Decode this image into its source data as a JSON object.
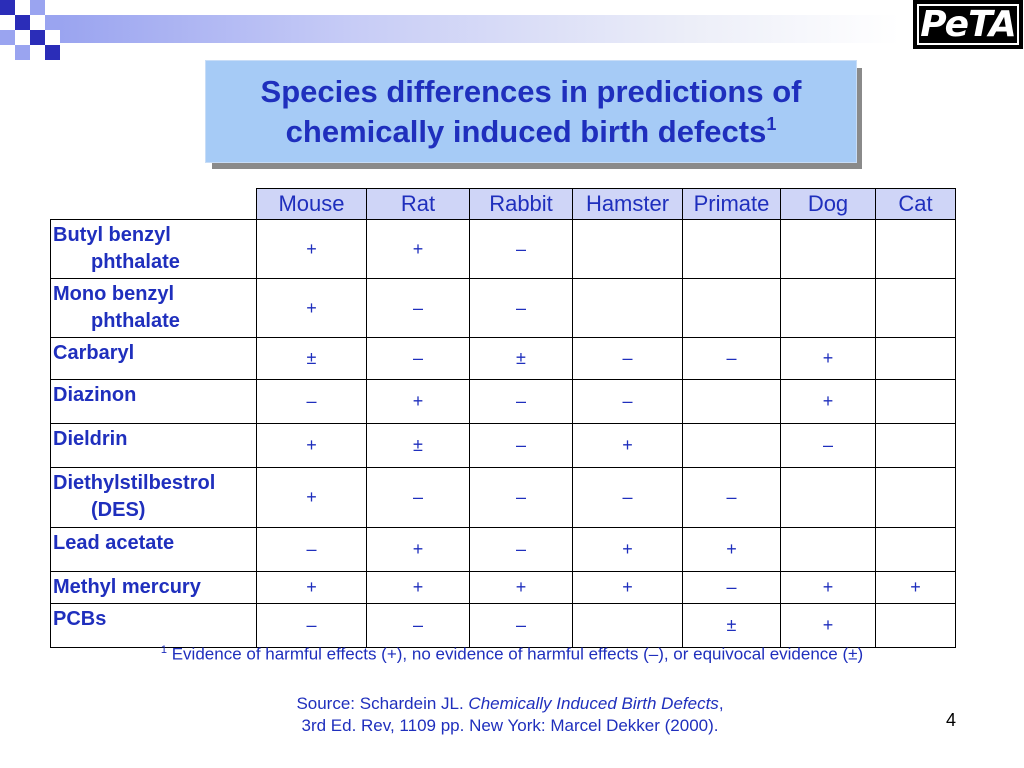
{
  "slide": {
    "title_line1": "Species differences in predictions of",
    "title_line2": "chemically induced birth defects",
    "title_sup": "1",
    "page_number": "4"
  },
  "logo": {
    "text": "PeTA"
  },
  "table": {
    "columns": [
      "Mouse",
      "Rat",
      "Rabbit",
      "Hamster",
      "Primate",
      "Dog",
      "Cat"
    ],
    "rows": [
      {
        "name_line1": "Butyl benzyl",
        "name_line2": "phthalate",
        "cells": [
          "+",
          "+",
          "–",
          "",
          "",
          "",
          ""
        ]
      },
      {
        "name_line1": "Mono benzyl",
        "name_line2": "phthalate",
        "cells": [
          "+",
          "–",
          "–",
          "",
          "",
          "",
          ""
        ]
      },
      {
        "name_line1": "Carbaryl",
        "name_line2": "",
        "cells": [
          "±",
          "–",
          "±",
          "–",
          "–",
          "+",
          ""
        ]
      },
      {
        "name_line1": "Diazinon",
        "name_line2": "",
        "cells": [
          "–",
          "+",
          "–",
          "–",
          "",
          "+",
          ""
        ]
      },
      {
        "name_line1": "Dieldrin",
        "name_line2": "",
        "cells": [
          "+",
          "±",
          "–",
          "+",
          "",
          "–",
          ""
        ]
      },
      {
        "name_line1": "Diethylstilbestrol",
        "name_line2": "(DES)",
        "cells": [
          "+",
          "–",
          "–",
          "–",
          "–",
          "",
          ""
        ]
      },
      {
        "name_line1": "Lead acetate",
        "name_line2": "",
        "cells": [
          "–",
          "+",
          "–",
          "+",
          "+",
          "",
          ""
        ]
      },
      {
        "name_line1": "Methyl mercury",
        "name_line2": "",
        "cells": [
          "+",
          "+",
          "+",
          "+",
          "–",
          "+",
          "+"
        ]
      },
      {
        "name_line1": "PCBs",
        "name_line2": "",
        "cells": [
          "–",
          "–",
          "–",
          "",
          "±",
          "+",
          ""
        ]
      }
    ]
  },
  "footnote": {
    "sup": "1",
    "text": "Evidence of harmful effects (+), no evidence of harmful effects (–), or equivocal evidence (±)"
  },
  "source": {
    "prefix": "Source: Schardein JL. ",
    "book_title": "Chemically Induced Birth Defects",
    "suffix": ",",
    "line2": "3rd Ed. Rev, 1109 pp. New York: Marcel Dekker (2000)."
  },
  "colors": {
    "text_blue": "#1f2fbd",
    "title_box": "#a6cbf6",
    "header_fill": "#cfd5f7",
    "deco_dark": "#2b2db8",
    "deco_light": "#9aa4f0"
  }
}
